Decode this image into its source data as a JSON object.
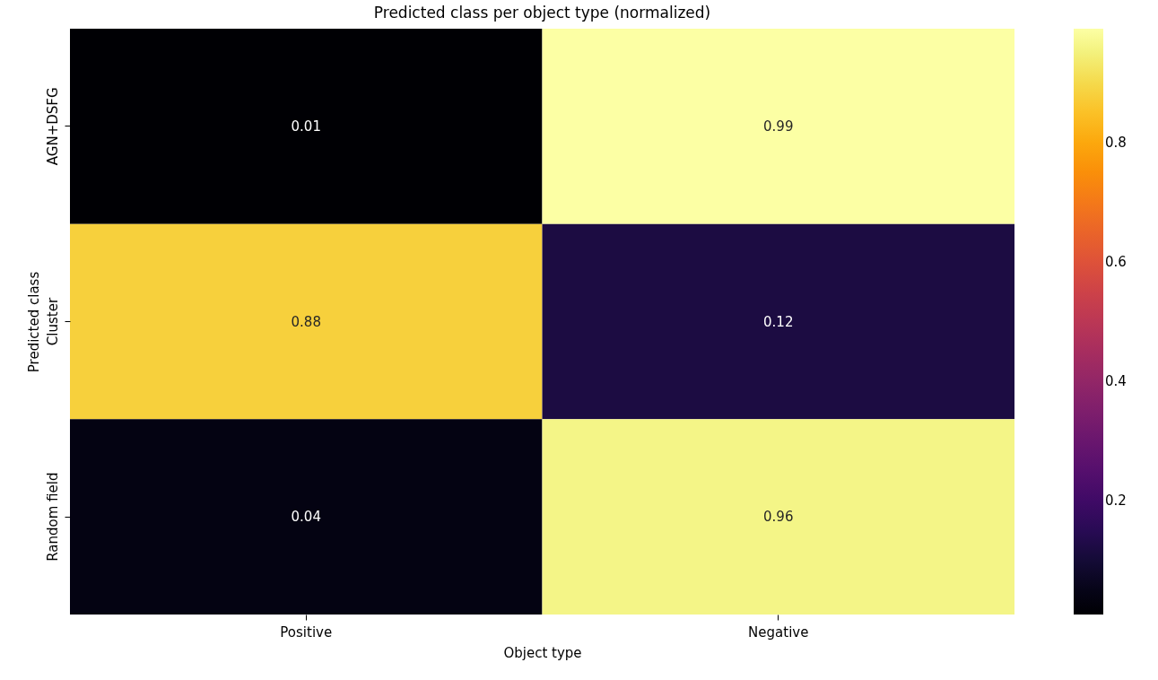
{
  "chart_data": {
    "type": "heatmap",
    "title": "Predicted class per object type (normalized)",
    "xlabel": "Object type",
    "ylabel": "Predicted class",
    "categories": [
      "Positive",
      "Negative"
    ],
    "y_categories": [
      "AGN+DSFG",
      "Cluster",
      "Random field"
    ],
    "cells": [
      [
        0.01,
        0.99
      ],
      [
        0.88,
        0.12
      ],
      [
        0.04,
        0.96
      ]
    ],
    "data_labels": true,
    "clim": [
      0.01,
      0.99
    ],
    "cticks": [
      0.2,
      0.4,
      0.6,
      0.8
    ]
  }
}
